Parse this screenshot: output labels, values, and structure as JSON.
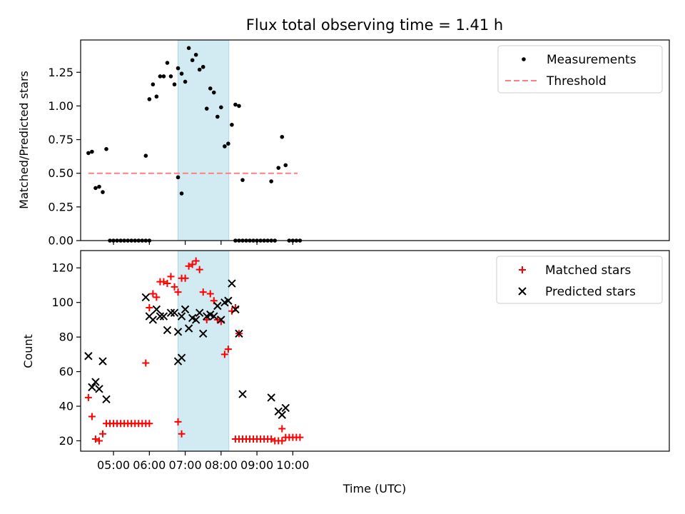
{
  "chart_data": [
    {
      "type": "scatter",
      "title": "Flux total observing time = 1.41 h",
      "xlabel": "",
      "ylabel": "Matched/Predicted stars",
      "ylim": [
        0,
        1.49
      ],
      "yticks": [
        0.0,
        0.25,
        0.5,
        0.75,
        1.0,
        1.25
      ],
      "ytick_labels": [
        "0.00",
        "0.25",
        "0.50",
        "0.75",
        "1.00",
        "1.25"
      ],
      "shaded_span": [
        "06:48",
        "08:13"
      ],
      "shaded_color": "#add8e6",
      "legend_position": "top-right",
      "legend": [
        "Measurements",
        "Threshold"
      ],
      "threshold": {
        "name": "Threshold",
        "value": 0.5,
        "x_range": [
          "04:18",
          "10:08"
        ],
        "color": "#ff7f7f"
      },
      "series": [
        {
          "name": "Measurements",
          "marker": "dot",
          "color": "#000000",
          "points": [
            [
              "04:18",
              0.65
            ],
            [
              "04:24",
              0.66
            ],
            [
              "04:30",
              0.39
            ],
            [
              "04:36",
              0.4
            ],
            [
              "04:42",
              0.36
            ],
            [
              "04:48",
              0.68
            ],
            [
              "04:54",
              0.0
            ],
            [
              "05:00",
              0.0
            ],
            [
              "05:06",
              0.0
            ],
            [
              "05:12",
              0.0
            ],
            [
              "05:18",
              0.0
            ],
            [
              "05:24",
              0.0
            ],
            [
              "05:30",
              0.0
            ],
            [
              "05:36",
              0.0
            ],
            [
              "05:42",
              0.0
            ],
            [
              "05:48",
              0.0
            ],
            [
              "05:54",
              0.0
            ],
            [
              "06:00",
              0.0
            ],
            [
              "05:54",
              0.63
            ],
            [
              "06:00",
              1.05
            ],
            [
              "06:06",
              1.16
            ],
            [
              "06:12",
              1.07
            ],
            [
              "06:18",
              1.22
            ],
            [
              "06:24",
              1.22
            ],
            [
              "06:30",
              1.32
            ],
            [
              "06:36",
              1.22
            ],
            [
              "06:42",
              1.16
            ],
            [
              "06:48",
              0.47
            ],
            [
              "06:54",
              0.35
            ],
            [
              "06:48",
              1.28
            ],
            [
              "06:54",
              1.24
            ],
            [
              "07:00",
              1.18
            ],
            [
              "07:06",
              1.43
            ],
            [
              "07:12",
              1.34
            ],
            [
              "07:18",
              1.38
            ],
            [
              "07:24",
              1.27
            ],
            [
              "07:30",
              1.29
            ],
            [
              "07:36",
              0.98
            ],
            [
              "07:42",
              1.13
            ],
            [
              "07:48",
              1.1
            ],
            [
              "07:54",
              0.92
            ],
            [
              "08:00",
              0.99
            ],
            [
              "08:06",
              0.7
            ],
            [
              "08:12",
              0.72
            ],
            [
              "08:18",
              0.86
            ],
            [
              "08:24",
              1.01
            ],
            [
              "08:30",
              1.0
            ],
            [
              "08:36",
              0.45
            ],
            [
              "08:24",
              0.0
            ],
            [
              "08:30",
              0.0
            ],
            [
              "08:36",
              0.0
            ],
            [
              "08:42",
              0.0
            ],
            [
              "08:48",
              0.0
            ],
            [
              "08:54",
              0.0
            ],
            [
              "09:00",
              0.0
            ],
            [
              "09:06",
              0.0
            ],
            [
              "09:12",
              0.0
            ],
            [
              "09:18",
              0.0
            ],
            [
              "09:24",
              0.0
            ],
            [
              "09:24",
              0.44
            ],
            [
              "09:30",
              0.0
            ],
            [
              "09:36",
              0.54
            ],
            [
              "09:42",
              0.77
            ],
            [
              "09:48",
              0.56
            ],
            [
              "09:54",
              0.0
            ],
            [
              "10:00",
              0.0
            ],
            [
              "10:06",
              0.0
            ],
            [
              "10:12",
              0.0
            ]
          ]
        }
      ]
    },
    {
      "type": "scatter",
      "title": "",
      "xlabel": "Time (UTC)",
      "ylabel": "Count",
      "ylim": [
        14,
        130
      ],
      "yticks": [
        20,
        40,
        60,
        80,
        100,
        120
      ],
      "ytick_labels": [
        "20",
        "40",
        "60",
        "80",
        "100",
        "120"
      ],
      "xticks": [
        "05:00",
        "06:00",
        "07:00",
        "08:00",
        "09:00",
        "10:00"
      ],
      "xtick_labels": [
        "05:00",
        "06:00",
        "07:00",
        "08:00",
        "09:00",
        "10:00"
      ],
      "shaded_span": [
        "06:48",
        "08:13"
      ],
      "shaded_color": "#add8e6",
      "legend_position": "top-right",
      "legend": [
        "Matched stars",
        "Predicted stars"
      ],
      "series": [
        {
          "name": "Matched stars",
          "marker": "plus",
          "color": "#ff0000",
          "points": [
            [
              "04:18",
              45
            ],
            [
              "04:24",
              34
            ],
            [
              "04:30",
              21
            ],
            [
              "04:36",
              20
            ],
            [
              "04:42",
              24
            ],
            [
              "04:48",
              30
            ],
            [
              "04:54",
              30
            ],
            [
              "05:00",
              30
            ],
            [
              "05:06",
              30
            ],
            [
              "05:12",
              30
            ],
            [
              "05:18",
              30
            ],
            [
              "05:24",
              30
            ],
            [
              "05:30",
              30
            ],
            [
              "05:36",
              30
            ],
            [
              "05:42",
              30
            ],
            [
              "05:48",
              30
            ],
            [
              "05:54",
              30
            ],
            [
              "06:00",
              30
            ],
            [
              "05:54",
              65
            ],
            [
              "06:00",
              97
            ],
            [
              "06:06",
              105
            ],
            [
              "06:12",
              103
            ],
            [
              "06:18",
              112
            ],
            [
              "06:24",
              112
            ],
            [
              "06:30",
              111
            ],
            [
              "06:36",
              115
            ],
            [
              "06:42",
              109
            ],
            [
              "06:48",
              31
            ],
            [
              "06:54",
              24
            ],
            [
              "06:48",
              106
            ],
            [
              "06:54",
              114
            ],
            [
              "07:00",
              114
            ],
            [
              "07:06",
              121
            ],
            [
              "07:12",
              122
            ],
            [
              "07:18",
              124
            ],
            [
              "07:24",
              119
            ],
            [
              "07:30",
              106
            ],
            [
              "07:36",
              90
            ],
            [
              "07:42",
              105
            ],
            [
              "07:48",
              101
            ],
            [
              "07:54",
              90
            ],
            [
              "08:00",
              89
            ],
            [
              "08:06",
              70
            ],
            [
              "08:12",
              73
            ],
            [
              "08:18",
              95
            ],
            [
              "08:24",
              97
            ],
            [
              "08:30",
              82
            ],
            [
              "08:24",
              21
            ],
            [
              "08:30",
              21
            ],
            [
              "08:36",
              21
            ],
            [
              "08:42",
              21
            ],
            [
              "08:48",
              21
            ],
            [
              "08:54",
              21
            ],
            [
              "09:00",
              21
            ],
            [
              "09:06",
              21
            ],
            [
              "09:12",
              21
            ],
            [
              "09:18",
              21
            ],
            [
              "09:24",
              21
            ],
            [
              "09:30",
              20
            ],
            [
              "09:36",
              20
            ],
            [
              "09:42",
              20
            ],
            [
              "09:42",
              27
            ],
            [
              "09:48",
              22
            ],
            [
              "09:54",
              22
            ],
            [
              "10:00",
              22
            ],
            [
              "10:06",
              22
            ],
            [
              "10:12",
              22
            ]
          ]
        },
        {
          "name": "Predicted stars",
          "marker": "x",
          "color": "#000000",
          "points": [
            [
              "04:18",
              69
            ],
            [
              "04:24",
              51
            ],
            [
              "04:30",
              54
            ],
            [
              "04:36",
              50
            ],
            [
              "04:42",
              66
            ],
            [
              "04:48",
              44
            ],
            [
              "05:54",
              103
            ],
            [
              "06:00",
              92
            ],
            [
              "06:06",
              90
            ],
            [
              "06:12",
              96
            ],
            [
              "06:18",
              92
            ],
            [
              "06:24",
              92
            ],
            [
              "06:30",
              84
            ],
            [
              "06:36",
              94
            ],
            [
              "06:42",
              94
            ],
            [
              "06:48",
              66
            ],
            [
              "06:54",
              68
            ],
            [
              "06:48",
              83
            ],
            [
              "06:54",
              92
            ],
            [
              "07:00",
              96
            ],
            [
              "07:06",
              85
            ],
            [
              "07:12",
              91
            ],
            [
              "07:18",
              90
            ],
            [
              "07:24",
              94
            ],
            [
              "07:30",
              82
            ],
            [
              "07:36",
              92
            ],
            [
              "07:42",
              93
            ],
            [
              "07:48",
              92
            ],
            [
              "07:54",
              98
            ],
            [
              "08:00",
              90
            ],
            [
              "08:06",
              100
            ],
            [
              "08:12",
              101
            ],
            [
              "08:18",
              111
            ],
            [
              "08:24",
              96
            ],
            [
              "08:30",
              82
            ],
            [
              "08:36",
              47
            ],
            [
              "09:24",
              45
            ],
            [
              "09:36",
              37
            ],
            [
              "09:42",
              35
            ],
            [
              "09:48",
              39
            ]
          ]
        }
      ]
    }
  ]
}
